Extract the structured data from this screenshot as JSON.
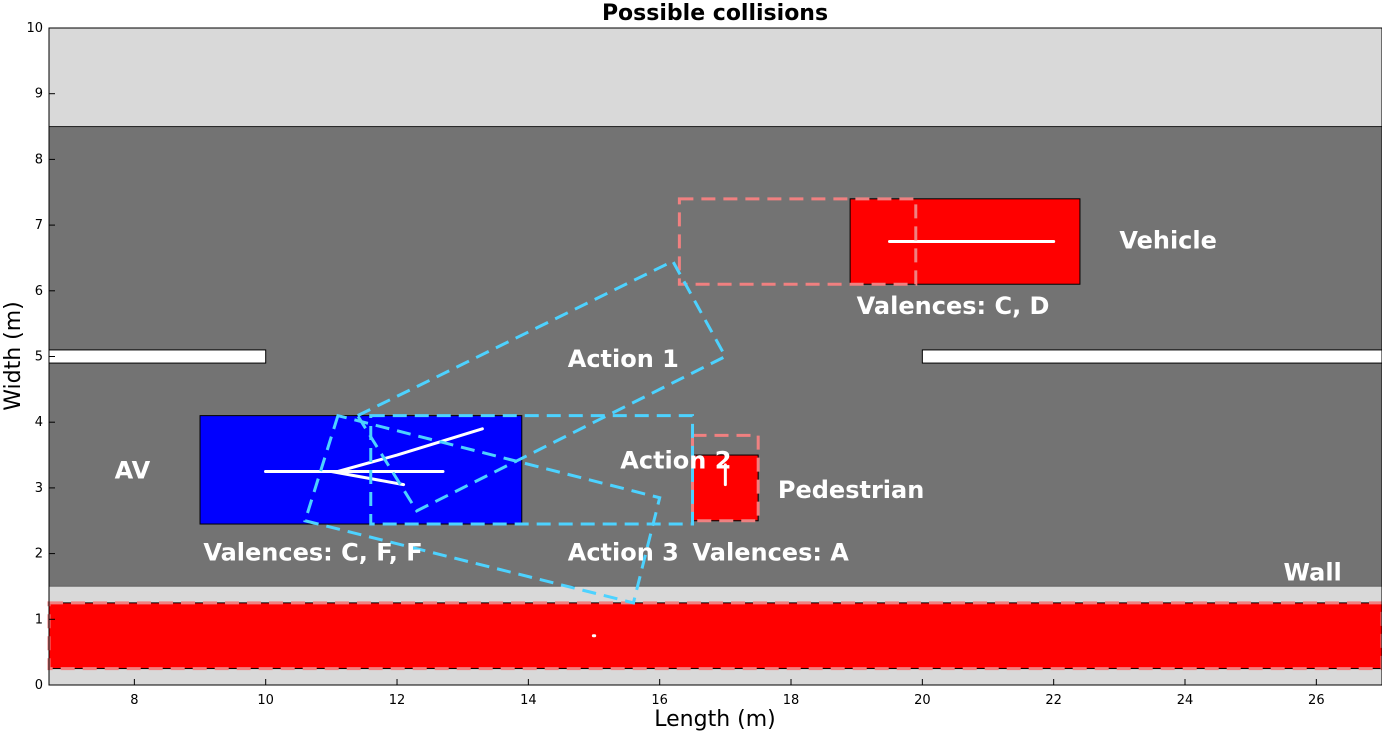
{
  "chart_data": {
    "type": "diagram-plot",
    "title": "Possible collisions",
    "xlabel": "Length (m)",
    "ylabel": "Width (m)",
    "xlim": [
      6.7,
      27.0
    ],
    "ylim": [
      0,
      10
    ],
    "x_ticks": [
      8,
      10,
      12,
      14,
      16,
      18,
      20,
      22,
      24,
      26
    ],
    "y_ticks": [
      0,
      1,
      2,
      3,
      4,
      5,
      6,
      7,
      8,
      9,
      10
    ],
    "colors": {
      "sidewalk": "#d9d9d9",
      "road": "#737373",
      "lane_marking": "#ffffff",
      "av": "#0000ff",
      "obstacle": "#ff0000",
      "collision_box": "#f08080",
      "action_box": "#4dd2ff",
      "trajectory": "#ffffff"
    },
    "regions": [
      {
        "name": "sidewalk-top",
        "x": [
          6.7,
          27.0
        ],
        "y": [
          8.5,
          10
        ]
      },
      {
        "name": "road",
        "x": [
          6.7,
          27.0
        ],
        "y": [
          1.5,
          8.5
        ]
      },
      {
        "name": "sidewalk-bottom",
        "x": [
          6.7,
          27.0
        ],
        "y": [
          0,
          1.5
        ]
      }
    ],
    "lane_markings": [
      {
        "x": [
          6.7,
          10.0
        ],
        "y": [
          4.9,
          5.1
        ]
      },
      {
        "x": [
          20.0,
          27.0
        ],
        "y": [
          4.9,
          5.1
        ]
      }
    ],
    "objects": [
      {
        "name": "AV",
        "x": [
          9.0,
          13.9
        ],
        "y": [
          2.45,
          4.1
        ],
        "color": "#0000ff"
      },
      {
        "name": "Vehicle",
        "x": [
          18.9,
          22.4
        ],
        "y": [
          6.1,
          7.4
        ],
        "color": "#ff0000"
      },
      {
        "name": "Pedestrian",
        "x": [
          16.5,
          17.5
        ],
        "y": [
          2.5,
          3.5
        ],
        "color": "#ff0000"
      },
      {
        "name": "Wall",
        "x": [
          6.7,
          27.0
        ],
        "y": [
          0.25,
          1.25
        ],
        "color": "#ff0000"
      }
    ],
    "collision_boxes": [
      {
        "x": [
          16.3,
          19.9
        ],
        "y": [
          6.1,
          7.4
        ]
      },
      {
        "x": [
          16.5,
          17.5
        ],
        "y": [
          2.5,
          3.8
        ]
      },
      {
        "x": [
          6.7,
          27.0
        ],
        "y": [
          0.25,
          1.25
        ]
      }
    ],
    "action_boxes": [
      {
        "name": "Action 1",
        "points": [
          [
            11.4,
            4.1
          ],
          [
            16.2,
            6.45
          ],
          [
            17.0,
            5.0
          ],
          [
            12.3,
            2.65
          ]
        ]
      },
      {
        "name": "Action 2",
        "points": [
          [
            11.6,
            4.1
          ],
          [
            16.5,
            4.1
          ],
          [
            16.5,
            2.45
          ],
          [
            11.6,
            2.45
          ]
        ]
      },
      {
        "name": "Action 3",
        "points": [
          [
            11.1,
            4.1
          ],
          [
            10.6,
            2.5
          ],
          [
            15.6,
            1.25
          ],
          [
            16.0,
            2.85
          ]
        ]
      }
    ],
    "trajectories": [
      {
        "x": [
          10.0,
          12.7
        ],
        "y": [
          3.25,
          3.25
        ]
      },
      {
        "x": [
          10.0,
          11.1,
          12.0,
          13.3
        ],
        "y": [
          3.25,
          3.25,
          3.5,
          3.9
        ]
      },
      {
        "x": [
          10.0,
          11.0,
          12.1
        ],
        "y": [
          3.25,
          3.25,
          3.05
        ]
      },
      {
        "x": [
          19.5,
          22.0
        ],
        "y": [
          6.75,
          6.75
        ]
      },
      {
        "x": [
          17.0,
          17.0
        ],
        "y": [
          3.05,
          3.35
        ]
      },
      {
        "x": [
          14.99,
          15.01
        ],
        "y": [
          0.75,
          0.75
        ]
      }
    ],
    "annotations": {
      "av": {
        "text": "AV",
        "x": 7.7,
        "y": 3.25
      },
      "av_valences": {
        "text": "Valences: C, F, F",
        "x": 9.05,
        "y": 2.0
      },
      "vehicle": {
        "text": "Vehicle",
        "x": 23.0,
        "y": 6.75
      },
      "vehicle_valences": {
        "text": "Valences: C, D",
        "x": 19.0,
        "y": 5.75
      },
      "pedestrian": {
        "text": "Pedestrian",
        "x": 17.8,
        "y": 2.95
      },
      "pedestrian_valences": {
        "text": "Valences: A",
        "x": 16.5,
        "y": 2.0
      },
      "action1": {
        "text": "Action 1",
        "x": 14.6,
        "y": 4.95
      },
      "action2": {
        "text": "Action 2",
        "x": 15.4,
        "y": 3.4
      },
      "action3": {
        "text": "Action 3",
        "x": 14.6,
        "y": 2.0
      },
      "wall": {
        "text": "Wall",
        "x": 25.5,
        "y": 1.7
      }
    }
  }
}
